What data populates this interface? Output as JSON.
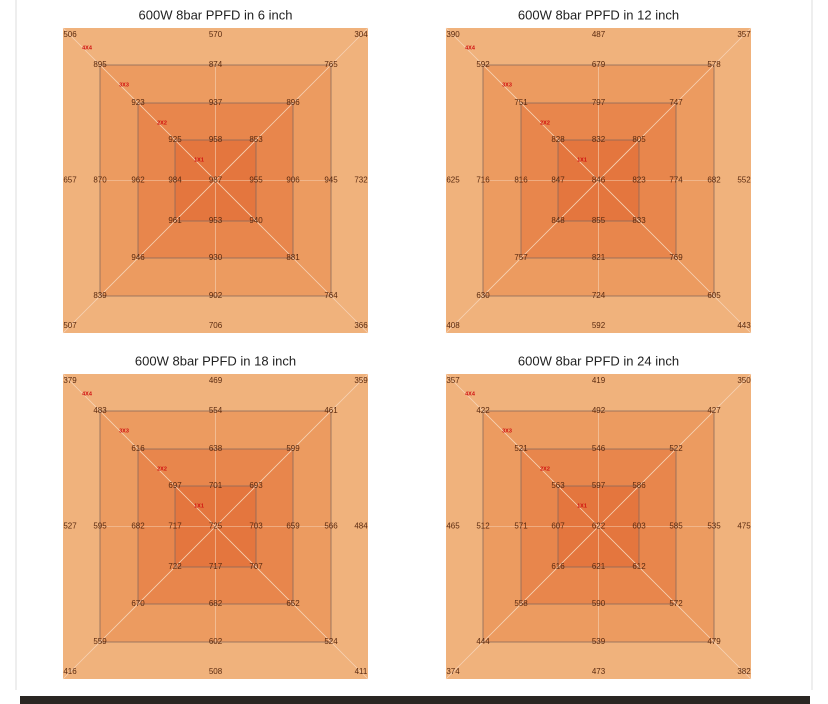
{
  "panels": [
    {
      "title": "600W 8bar PPFD in 6 inch",
      "zones": [
        "4X4",
        "3X3",
        "2X2",
        "1X1"
      ],
      "rings": [
        [
          506,
          570,
          304,
          657,
          732,
          507,
          706,
          366
        ],
        [
          895,
          874,
          765,
          870,
          945,
          839,
          902,
          764
        ],
        [
          923,
          937,
          896,
          962,
          906,
          946,
          930,
          881
        ],
        [
          925,
          958,
          853,
          984,
          955,
          961,
          953,
          940
        ]
      ],
      "center": 987
    },
    {
      "title": "600W 8bar PPFD in 12 inch",
      "zones": [
        "4X4",
        "3X3",
        "2X2",
        "1X1"
      ],
      "rings": [
        [
          390,
          487,
          357,
          625,
          552,
          408,
          592,
          443
        ],
        [
          592,
          679,
          578,
          716,
          682,
          630,
          724,
          605
        ],
        [
          751,
          797,
          747,
          816,
          774,
          757,
          821,
          769
        ],
        [
          828,
          832,
          805,
          847,
          823,
          848,
          855,
          833
        ]
      ],
      "center": 846
    },
    {
      "title": "600W 8bar PPFD in 18 inch",
      "zones": [
        "4X4",
        "3X3",
        "2X2",
        "1X1"
      ],
      "rings": [
        [
          379,
          469,
          359,
          527,
          484,
          416,
          508,
          411
        ],
        [
          483,
          554,
          461,
          595,
          566,
          559,
          602,
          524
        ],
        [
          616,
          638,
          599,
          682,
          659,
          670,
          682,
          652
        ],
        [
          697,
          701,
          693,
          717,
          703,
          722,
          717,
          707
        ]
      ],
      "center": 725
    },
    {
      "title": "600W 8bar PPFD in 24 inch",
      "zones": [
        "4X4",
        "3X3",
        "2X2",
        "1X1"
      ],
      "rings": [
        [
          357,
          419,
          350,
          465,
          475,
          374,
          473,
          382
        ],
        [
          422,
          492,
          427,
          512,
          535,
          444,
          539,
          479
        ],
        [
          521,
          546,
          522,
          571,
          585,
          558,
          590,
          572
        ],
        [
          563,
          597,
          586,
          607,
          603,
          616,
          621,
          612
        ]
      ],
      "center": 622
    }
  ]
}
